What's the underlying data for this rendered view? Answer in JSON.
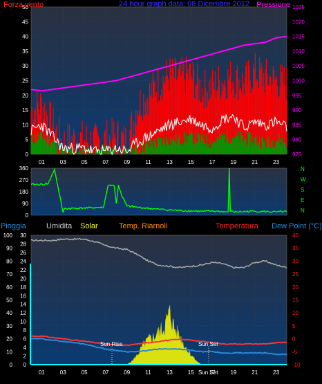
{
  "header": {
    "wind_label": "Forza vento",
    "title": "24 hour graph data: 08 Dicembre 2012",
    "pressure_label": "Pressione"
  },
  "middle": {
    "direction_labels": [
      "N",
      "W",
      "S",
      "E",
      "N"
    ]
  },
  "lower_header": {
    "rain": "Pioggia",
    "humidity": "Umidita",
    "solar": "Solar",
    "temp_indoor": "Temp. Riarnoli",
    "temperature": "Temperatura",
    "dewpoint": "Dew Point (°C)"
  },
  "markers": {
    "sunrise": "Sun Rise",
    "sunset": "Sun Set",
    "sunset_bottom": "Sun Set"
  },
  "colors": {
    "bg": "#000000",
    "plot_top": "#2b3440",
    "plot_bottom": "#0a3a72",
    "wind_red": "#ff0000",
    "wind_white": "#ffffff",
    "wind_green": "#009900",
    "pressure": "#ff00ff",
    "direction": "#00ff00",
    "humidity": "#aaaaaa",
    "solar": "#ffff00",
    "temperature": "#ff3333",
    "dewpoint": "#2a8ad8",
    "rain": "#00ffff",
    "title_blue": "#3333ff",
    "axis_text": "#ffffff"
  },
  "chart_data": [
    {
      "type": "line",
      "name": "wind-pressure",
      "x_ticks": [
        "01",
        "03",
        "05",
        "07",
        "09",
        "11",
        "13",
        "15",
        "17",
        "19",
        "21",
        "23"
      ],
      "y_left_ticks": [
        0,
        5,
        10,
        15,
        20,
        25,
        30,
        35,
        40,
        45,
        50
      ],
      "y_right_ticks": [
        975,
        980,
        985,
        990,
        995,
        1000,
        1005,
        1010,
        1015,
        1020,
        1025
      ],
      "ylim_left": [
        0,
        50
      ],
      "ylim_right": [
        975,
        1025
      ],
      "series": [
        {
          "name": "Forza vento",
          "role": "wind_gust",
          "x": [
            0,
            1,
            2,
            3,
            4,
            5,
            6,
            7,
            8,
            9,
            10,
            11,
            12,
            13,
            14,
            15,
            16,
            17,
            18,
            19,
            20,
            21,
            22,
            23,
            24
          ],
          "values": [
            15,
            17,
            10,
            4,
            5,
            5,
            4,
            5,
            6,
            4,
            17,
            20,
            24,
            27,
            26,
            27,
            22,
            23,
            25,
            26,
            24,
            28,
            26,
            25,
            24
          ]
        },
        {
          "name": "",
          "role": "wind_avg",
          "x": [
            0,
            1,
            2,
            3,
            4,
            5,
            6,
            7,
            8,
            9,
            10,
            11,
            12,
            13,
            14,
            15,
            16,
            17,
            18,
            19,
            20,
            21,
            22,
            23,
            24
          ],
          "values": [
            8,
            10,
            6,
            2,
            2,
            2,
            1,
            1,
            2,
            1,
            4,
            6,
            8,
            10,
            11,
            12,
            10,
            9,
            12,
            13,
            9,
            11,
            10,
            11,
            9
          ]
        },
        {
          "name": "",
          "role": "wind_min",
          "x": [
            0,
            1,
            2,
            3,
            4,
            5,
            6,
            7,
            8,
            9,
            10,
            11,
            12,
            13,
            14,
            15,
            16,
            17,
            18,
            19,
            20,
            21,
            22,
            23,
            24
          ],
          "values": [
            5,
            6,
            4,
            1,
            1,
            1,
            1,
            1,
            1,
            0,
            2,
            3,
            4,
            5,
            5,
            6,
            5,
            4,
            6,
            6,
            5,
            5,
            4,
            5,
            4
          ]
        },
        {
          "name": "Pressione",
          "role": "pressure",
          "x": [
            0,
            1,
            2,
            3,
            4,
            5,
            6,
            7,
            8,
            9,
            10,
            11,
            12,
            13,
            14,
            15,
            16,
            17,
            18,
            19,
            20,
            21,
            22,
            23,
            24
          ],
          "values": [
            997,
            996.5,
            997,
            997.5,
            998,
            998.5,
            999,
            999.5,
            1000,
            1001,
            1002,
            1003,
            1004,
            1005,
            1006,
            1007,
            1008,
            1009,
            1010,
            1011,
            1012,
            1012.5,
            1013,
            1014.5,
            1015
          ]
        }
      ]
    },
    {
      "type": "line",
      "name": "wind-direction",
      "y_ticks": [
        0,
        90,
        180,
        270,
        360
      ],
      "ylim": [
        0,
        360
      ],
      "x": [
        0,
        1.3,
        1.4,
        1.6,
        2.2,
        3.0,
        3.1,
        5.0,
        6.8,
        7.2,
        7.3,
        7.8,
        8.0,
        8.2,
        8.5,
        9.0,
        10,
        12,
        14,
        16,
        17.5,
        18.5,
        18.6,
        18.7,
        19,
        21,
        23,
        24
      ],
      "values": [
        235,
        235,
        245,
        240,
        350,
        20,
        50,
        55,
        60,
        220,
        230,
        225,
        90,
        230,
        150,
        70,
        60,
        45,
        35,
        30,
        30,
        25,
        360,
        30,
        25,
        30,
        25,
        28
      ]
    },
    {
      "type": "line",
      "name": "humidity-solar-temperature",
      "y_left_ticks": [
        0,
        10,
        20,
        30,
        40,
        50,
        60,
        70,
        80,
        90,
        100
      ],
      "ylim_left": [
        0,
        100
      ],
      "y_rain_ticks": [
        0,
        2,
        4,
        6,
        8,
        10,
        12,
        14,
        16,
        18,
        20,
        22,
        24,
        26,
        28,
        30
      ],
      "ylim_rain": [
        0,
        30
      ],
      "y_right_ticks": [
        -10,
        -5,
        0,
        5,
        10,
        15,
        20,
        25,
        30,
        35,
        40
      ],
      "ylim_right": [
        -10,
        40
      ],
      "x_ticks": [
        "01",
        "03",
        "05",
        "07",
        "09",
        "11",
        "13",
        "15",
        "17",
        "19",
        "21",
        "23"
      ],
      "series": [
        {
          "name": "Umidita",
          "role": "humidity",
          "x": [
            0,
            1,
            2,
            3,
            4,
            5,
            6,
            7,
            8,
            9,
            10,
            11,
            12,
            13,
            14,
            15,
            16,
            17,
            18,
            19,
            20,
            21,
            22,
            23,
            24
          ],
          "values": [
            96,
            96,
            96,
            97,
            97,
            97,
            95,
            92,
            90,
            89,
            85,
            80,
            77,
            76,
            75,
            76,
            77,
            79,
            78,
            75,
            75,
            79,
            80,
            77,
            75
          ]
        },
        {
          "name": "Solar",
          "role": "solar",
          "x": [
            9,
            9.5,
            10,
            10.5,
            11,
            11.5,
            12,
            12.5,
            13,
            13.5,
            14,
            14.5,
            15,
            15.5,
            16
          ],
          "values": [
            0,
            3,
            8,
            15,
            20,
            22,
            26,
            30,
            42,
            28,
            22,
            14,
            8,
            3,
            0
          ]
        },
        {
          "name": "Temperatura",
          "role": "temperature",
          "x": [
            0,
            1,
            2,
            3,
            4,
            5,
            6,
            7,
            8,
            9,
            10,
            11,
            12,
            13,
            14,
            15,
            16,
            17,
            18,
            19,
            20,
            21,
            22,
            23,
            24
          ],
          "values": [
            1,
            1,
            0.5,
            0,
            -0.5,
            -1,
            -1.5,
            -2,
            -2.5,
            -2.5,
            -2,
            -1.5,
            -1,
            -0.5,
            -0.3,
            -0.5,
            -1,
            -1.5,
            -2,
            -2,
            -2,
            -2,
            -2,
            -1.5,
            -1.5
          ]
        },
        {
          "name": "Dew Point (°C)",
          "role": "dewpoint",
          "x": [
            0,
            1,
            2,
            3,
            4,
            5,
            6,
            7,
            8,
            9,
            10,
            11,
            12,
            13,
            14,
            15,
            16,
            17,
            18,
            19,
            20,
            21,
            22,
            23,
            24
          ],
          "values": [
            0,
            0,
            -0.5,
            -1,
            -1.5,
            -2,
            -3,
            -4,
            -4.5,
            -5,
            -5,
            -4.5,
            -4,
            -4,
            -4,
            -4.5,
            -5,
            -5,
            -5.5,
            -5.5,
            -5.5,
            -5.5,
            -5.5,
            -6,
            -6
          ]
        },
        {
          "name": "Pioggia",
          "role": "rain",
          "x": [
            0,
            24
          ],
          "values": [
            0,
            0
          ]
        }
      ]
    }
  ]
}
